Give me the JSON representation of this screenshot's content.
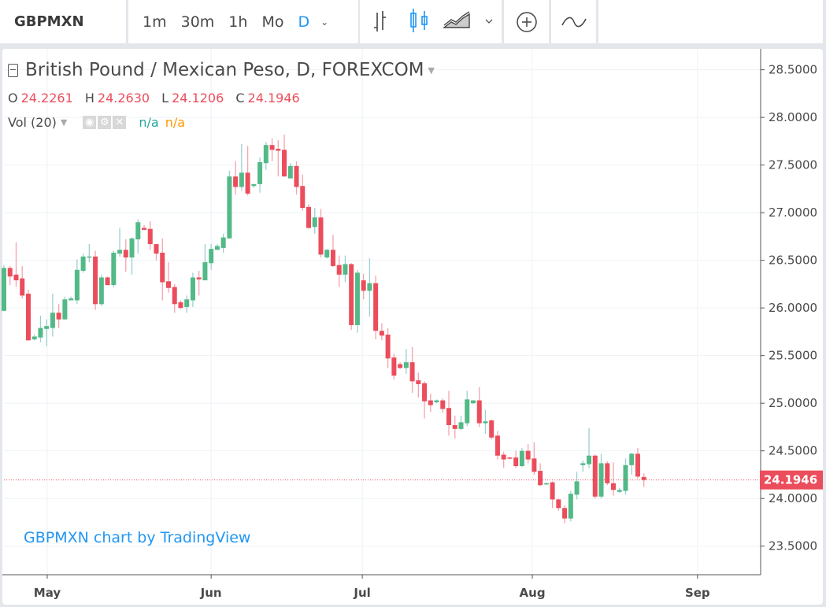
{
  "toolbar": {
    "symbol": "GBPMXN",
    "intervals": [
      "1m",
      "30m",
      "1h",
      "Mo",
      "D"
    ],
    "active_interval": "D",
    "icons": [
      "bar-chart-icon",
      "candlestick-icon",
      "area-chart-icon",
      "add-compare-icon",
      "indicators-icon"
    ]
  },
  "legend": {
    "title": "British Pound / Mexican Peso, D, FOREXCOM",
    "ohlc": [
      {
        "key": "O",
        "value": "24.2261"
      },
      {
        "key": "H",
        "value": "24.2630"
      },
      {
        "key": "L",
        "value": "24.1206"
      },
      {
        "key": "C",
        "value": "24.1946"
      }
    ],
    "volume": {
      "label": "Vol (20)",
      "value1": "n/a",
      "value2": "n/a"
    }
  },
  "credit": "GBPMXN chart by TradingView",
  "colors": {
    "up": "#53b987",
    "down": "#eb4d5c",
    "accent": "#2196f3"
  },
  "chart_data": {
    "type": "candlestick",
    "title": "British Pound / Mexican Peso, D, FOREXCOM",
    "ylim": [
      23.2,
      28.72
    ],
    "yticks": [
      "23.5000",
      "24.0000",
      "24.5000",
      "25.0000",
      "25.5000",
      "26.0000",
      "26.5000",
      "27.0000",
      "27.5000",
      "28.0000",
      "28.5000"
    ],
    "xticks": [
      {
        "label": "May",
        "bar_index": 7.1
      },
      {
        "label": "Jun",
        "bar_index": 34
      },
      {
        "label": "Jul",
        "bar_index": 58.8
      },
      {
        "label": "Aug",
        "bar_index": 86.7
      },
      {
        "label": "Sep",
        "bar_index": 113.8
      }
    ],
    "last_price": "24.1946",
    "grid": true,
    "ohlc": [
      [
        25.97,
        26.45,
        25.97,
        26.42
      ],
      [
        26.42,
        26.44,
        26.24,
        26.33
      ],
      [
        26.35,
        26.69,
        26.22,
        26.29
      ],
      [
        26.31,
        26.44,
        26.1,
        26.13
      ],
      [
        26.15,
        26.19,
        25.66,
        25.66
      ],
      [
        25.67,
        25.72,
        25.66,
        25.7
      ],
      [
        25.69,
        25.92,
        25.64,
        25.79
      ],
      [
        25.78,
        25.88,
        25.6,
        25.81
      ],
      [
        25.79,
        26.15,
        25.7,
        25.95
      ],
      [
        25.95,
        26.04,
        25.79,
        25.88
      ],
      [
        25.88,
        26.12,
        25.88,
        26.09
      ],
      [
        26.08,
        26.12,
        26.08,
        26.1
      ],
      [
        26.08,
        26.51,
        26.04,
        26.4
      ],
      [
        26.39,
        26.57,
        26.37,
        26.54
      ],
      [
        26.53,
        26.67,
        26.48,
        26.54
      ],
      [
        26.54,
        26.6,
        25.98,
        26.04
      ],
      [
        26.04,
        26.35,
        26.02,
        26.32
      ],
      [
        26.32,
        26.33,
        26.24,
        26.24
      ],
      [
        26.24,
        26.6,
        26.22,
        26.58
      ],
      [
        26.57,
        26.84,
        26.54,
        26.61
      ],
      [
        26.61,
        26.72,
        26.38,
        26.53
      ],
      [
        26.53,
        26.74,
        26.35,
        26.73
      ],
      [
        26.72,
        26.93,
        26.57,
        26.9
      ],
      [
        26.84,
        26.87,
        26.82,
        26.82
      ],
      [
        26.83,
        26.91,
        26.61,
        26.67
      ],
      [
        26.67,
        26.67,
        26.5,
        26.57
      ],
      [
        26.58,
        26.73,
        26.08,
        26.27
      ],
      [
        26.28,
        26.48,
        26.16,
        26.21
      ],
      [
        26.22,
        26.25,
        25.95,
        26.04
      ],
      [
        26.06,
        26.08,
        25.99,
        26.0
      ],
      [
        26.01,
        26.13,
        25.95,
        26.09
      ],
      [
        26.08,
        26.37,
        26.01,
        26.32
      ],
      [
        26.32,
        26.39,
        26.13,
        26.3
      ],
      [
        26.29,
        26.67,
        26.29,
        26.48
      ],
      [
        26.47,
        26.67,
        26.4,
        26.62
      ],
      [
        26.61,
        26.67,
        26.61,
        26.65
      ],
      [
        26.63,
        26.78,
        26.58,
        26.74
      ],
      [
        26.73,
        27.44,
        26.73,
        27.38
      ],
      [
        27.38,
        27.54,
        27.19,
        27.27
      ],
      [
        27.27,
        27.72,
        27.23,
        27.42
      ],
      [
        27.42,
        27.7,
        27.18,
        27.2
      ],
      [
        27.28,
        27.3,
        27.26,
        27.3
      ],
      [
        27.3,
        27.58,
        27.21,
        27.53
      ],
      [
        27.52,
        27.74,
        27.45,
        27.71
      ],
      [
        27.71,
        27.78,
        27.54,
        27.66
      ],
      [
        27.67,
        27.76,
        27.38,
        27.65
      ],
      [
        27.66,
        27.82,
        27.38,
        27.38
      ],
      [
        27.36,
        27.52,
        27.36,
        27.49
      ],
      [
        27.49,
        27.54,
        27.19,
        27.27
      ],
      [
        27.28,
        27.4,
        27.02,
        27.05
      ],
      [
        27.06,
        27.09,
        26.83,
        26.84
      ],
      [
        26.85,
        27.05,
        26.78,
        26.95
      ],
      [
        26.95,
        27.04,
        26.53,
        26.56
      ],
      [
        26.53,
        26.62,
        26.52,
        26.61
      ],
      [
        26.61,
        26.77,
        26.43,
        26.44
      ],
      [
        26.45,
        26.55,
        26.22,
        26.35
      ],
      [
        26.35,
        26.55,
        26.27,
        26.46
      ],
      [
        26.46,
        26.47,
        25.77,
        25.82
      ],
      [
        25.82,
        26.4,
        25.74,
        26.37
      ],
      [
        26.29,
        26.36,
        26.09,
        26.18
      ],
      [
        26.18,
        26.52,
        25.91,
        26.26
      ],
      [
        26.26,
        26.34,
        25.67,
        25.76
      ],
      [
        25.76,
        25.84,
        25.66,
        25.71
      ],
      [
        25.72,
        25.79,
        25.37,
        25.47
      ],
      [
        25.48,
        25.52,
        25.25,
        25.29
      ],
      [
        25.41,
        25.43,
        25.36,
        25.37
      ],
      [
        25.37,
        25.57,
        25.31,
        25.43
      ],
      [
        25.43,
        25.59,
        25.11,
        25.23
      ],
      [
        25.24,
        25.32,
        25.06,
        25.2
      ],
      [
        25.21,
        25.23,
        24.84,
        25.02
      ],
      [
        25.03,
        25.1,
        24.91,
        24.98
      ],
      [
        25.01,
        25.04,
        25.0,
        25.03
      ],
      [
        25.03,
        25.05,
        24.9,
        24.94
      ],
      [
        24.95,
        25.13,
        24.66,
        24.77
      ],
      [
        24.77,
        24.87,
        24.63,
        24.73
      ],
      [
        24.73,
        24.87,
        24.72,
        24.8
      ],
      [
        24.79,
        25.13,
        24.76,
        25.04
      ],
      [
        25.0,
        25.03,
        24.99,
        25.03
      ],
      [
        25.03,
        25.17,
        24.75,
        24.79
      ],
      [
        24.79,
        24.93,
        24.68,
        24.81
      ],
      [
        24.82,
        24.83,
        24.62,
        24.64
      ],
      [
        24.66,
        24.71,
        24.41,
        24.45
      ],
      [
        24.46,
        24.49,
        24.32,
        24.41
      ],
      [
        24.43,
        24.44,
        24.41,
        24.42
      ],
      [
        24.43,
        24.5,
        24.32,
        24.34
      ],
      [
        24.34,
        24.53,
        24.33,
        24.5
      ],
      [
        24.5,
        24.57,
        24.37,
        24.41
      ],
      [
        24.42,
        24.59,
        24.25,
        24.28
      ],
      [
        24.29,
        24.37,
        24.13,
        24.14
      ],
      [
        24.15,
        24.17,
        24.14,
        24.16
      ],
      [
        24.17,
        24.18,
        23.9,
        23.99
      ],
      [
        23.99,
        24.0,
        23.87,
        23.9
      ],
      [
        23.9,
        23.93,
        23.74,
        23.79
      ],
      [
        23.79,
        24.08,
        23.76,
        24.05
      ],
      [
        24.04,
        24.28,
        23.99,
        24.18
      ],
      [
        24.35,
        24.4,
        24.28,
        24.37
      ],
      [
        24.36,
        24.74,
        24.32,
        24.45
      ],
      [
        24.45,
        24.46,
        24.0,
        24.02
      ],
      [
        24.02,
        24.47,
        24.0,
        24.37
      ],
      [
        24.37,
        24.39,
        24.14,
        24.16
      ],
      [
        24.16,
        24.38,
        24.03,
        24.09
      ],
      [
        24.07,
        24.11,
        24.06,
        24.09
      ],
      [
        24.08,
        24.42,
        24.04,
        24.35
      ],
      [
        24.35,
        24.48,
        24.25,
        24.47
      ],
      [
        24.47,
        24.53,
        24.21,
        24.23
      ],
      [
        24.2261,
        24.263,
        24.1206,
        24.1946
      ]
    ]
  }
}
